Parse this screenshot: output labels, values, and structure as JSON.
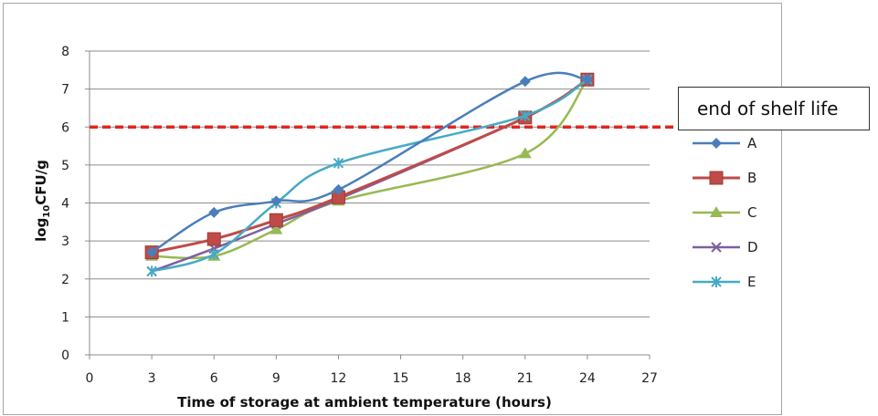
{
  "chart_data": {
    "type": "line",
    "title": "",
    "xlabel": "Time of storage at ambient temperature (hours)",
    "ylabel": "log10CFU/g",
    "xlim": [
      0,
      27
    ],
    "ylim": [
      0,
      8
    ],
    "x_ticks": [
      0,
      3,
      6,
      9,
      12,
      15,
      18,
      21,
      24,
      27
    ],
    "y_ticks": [
      0,
      1,
      2,
      3,
      4,
      5,
      6,
      7,
      8
    ],
    "grid": "horizontal",
    "legend_position": "right",
    "x": [
      3,
      6,
      9,
      12,
      21,
      24
    ],
    "series": [
      {
        "name": "A",
        "color": "#4a7ebb",
        "marker": "diamond",
        "values": [
          2.7,
          3.75,
          4.05,
          4.35,
          7.2,
          7.25
        ]
      },
      {
        "name": "B",
        "color": "#be4b48",
        "marker": "square",
        "values": [
          2.7,
          3.05,
          3.55,
          4.15,
          6.25,
          7.25
        ]
      },
      {
        "name": "C",
        "color": "#98b954",
        "marker": "triangle",
        "values": [
          2.6,
          2.6,
          3.3,
          4.05,
          5.3,
          7.25
        ]
      },
      {
        "name": "D",
        "color": "#7d60a0",
        "marker": "x",
        "values": [
          2.2,
          2.8,
          3.45,
          4.1,
          6.25,
          7.25
        ]
      },
      {
        "name": "E",
        "color": "#46aac5",
        "marker": "star",
        "values": [
          2.2,
          2.65,
          4.0,
          5.05,
          6.3,
          7.25
        ]
      }
    ],
    "threshold": {
      "value": 6,
      "color": "#e3261e",
      "style": "dashed"
    },
    "annotation": "end of shelf life"
  }
}
